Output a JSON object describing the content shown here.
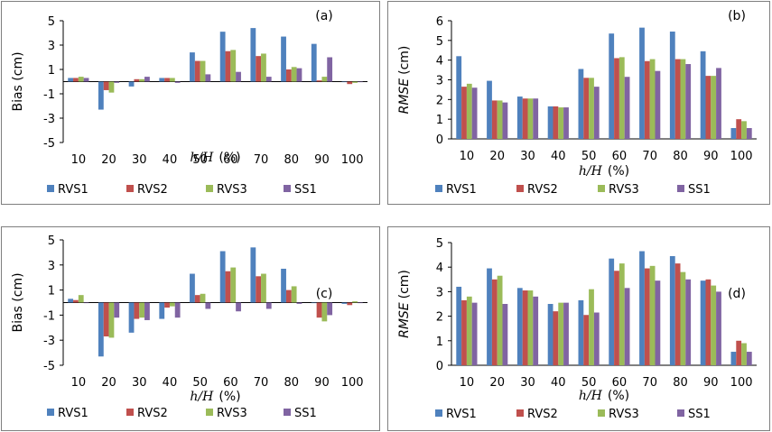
{
  "colors": {
    "RVS1": "#4f81bd",
    "RVS2": "#c0504d",
    "RVS3": "#9bbb59",
    "SS1": "#8064a2"
  },
  "chart_data": [
    {
      "type": "bar",
      "panel_label": "(a)",
      "title": "",
      "categories": [
        "10",
        "20",
        "30",
        "40",
        "50",
        "60",
        "70",
        "80",
        "90",
        "100"
      ],
      "xlabel_italic": "h/H",
      "xlabel_unit": "(%)",
      "ylabel": "Bias (cm)",
      "ylabel_italic": false,
      "ylim": [
        -5,
        5
      ],
      "yticks": [
        "5",
        "3",
        "1",
        "-1",
        "-3",
        "-5"
      ],
      "ytick_values": [
        5,
        3,
        1,
        -1,
        -3,
        -5
      ],
      "grid": false,
      "legend_position": "bottom",
      "series": [
        {
          "name": "RVS1",
          "values": [
            0.3,
            -2.3,
            -0.4,
            0.3,
            2.4,
            4.1,
            4.4,
            3.7,
            3.1,
            0.0
          ]
        },
        {
          "name": "RVS2",
          "values": [
            0.3,
            -0.7,
            0.2,
            0.3,
            1.7,
            2.5,
            2.1,
            1.0,
            0.1,
            -0.2
          ]
        },
        {
          "name": "RVS3",
          "values": [
            0.4,
            -0.9,
            0.2,
            0.3,
            1.7,
            2.6,
            2.3,
            1.2,
            0.4,
            -0.1
          ]
        },
        {
          "name": "SS1",
          "values": [
            0.3,
            -0.1,
            0.4,
            -0.1,
            0.6,
            0.8,
            0.4,
            1.1,
            2.0,
            0.0
          ]
        }
      ]
    },
    {
      "type": "bar",
      "panel_label": "(b)",
      "title": "",
      "categories": [
        "10",
        "20",
        "30",
        "40",
        "50",
        "60",
        "70",
        "80",
        "90",
        "100"
      ],
      "xlabel_italic": "h/H",
      "xlabel_unit": "(%)",
      "ylabel": "RMSE (cm)",
      "ylabel_italic": true,
      "ylim": [
        0,
        6
      ],
      "yticks": [
        "6",
        "5",
        "4",
        "3",
        "2",
        "1",
        "0"
      ],
      "ytick_values": [
        6,
        5,
        4,
        3,
        2,
        1,
        0
      ],
      "grid": false,
      "legend_position": "bottom",
      "series": [
        {
          "name": "RVS1",
          "values": [
            4.2,
            2.95,
            2.15,
            1.65,
            3.55,
            5.35,
            5.65,
            5.45,
            4.45,
            0.55
          ]
        },
        {
          "name": "RVS2",
          "values": [
            2.65,
            1.95,
            2.05,
            1.65,
            3.1,
            4.1,
            3.95,
            4.05,
            3.2,
            1.0
          ]
        },
        {
          "name": "RVS3",
          "values": [
            2.8,
            1.95,
            2.05,
            1.6,
            3.1,
            4.15,
            4.05,
            4.05,
            3.2,
            0.9
          ]
        },
        {
          "name": "SS1",
          "values": [
            2.6,
            1.85,
            2.05,
            1.6,
            2.65,
            3.15,
            3.45,
            3.8,
            3.6,
            0.55
          ]
        }
      ]
    },
    {
      "type": "bar",
      "panel_label": "(c)",
      "title": "",
      "categories": [
        "10",
        "20",
        "30",
        "40",
        "50",
        "60",
        "70",
        "80",
        "90",
        "100"
      ],
      "xlabel_italic": "h/H",
      "xlabel_unit": "(%)",
      "ylabel": "Bias (cm)",
      "ylabel_italic": false,
      "ylim": [
        -5,
        5
      ],
      "yticks": [
        "5",
        "3",
        "1",
        "-1",
        "-3",
        "-5"
      ],
      "ytick_values": [
        5,
        3,
        1,
        -1,
        -3,
        -5
      ],
      "grid": false,
      "legend_position": "bottom",
      "series": [
        {
          "name": "RVS1",
          "values": [
            0.3,
            -4.3,
            -2.4,
            -1.3,
            2.3,
            4.1,
            4.4,
            2.7,
            0.0,
            -0.1
          ]
        },
        {
          "name": "RVS2",
          "values": [
            0.2,
            -2.7,
            -1.3,
            -0.4,
            0.6,
            2.5,
            2.1,
            1.0,
            -1.2,
            -0.2
          ]
        },
        {
          "name": "RVS3",
          "values": [
            0.6,
            -2.8,
            -1.2,
            -0.3,
            0.7,
            2.8,
            2.3,
            1.3,
            -1.5,
            0.1
          ]
        },
        {
          "name": "SS1",
          "values": [
            0.0,
            -1.2,
            -1.4,
            -1.2,
            -0.5,
            -0.7,
            -0.5,
            -0.1,
            -1.0,
            0.0
          ]
        }
      ]
    },
    {
      "type": "bar",
      "panel_label": "(d)",
      "title": "",
      "categories": [
        "10",
        "20",
        "30",
        "40",
        "50",
        "60",
        "70",
        "80",
        "90",
        "100"
      ],
      "xlabel_italic": "h/H",
      "xlabel_unit": "(%)",
      "ylabel": "RMSE (cm)",
      "ylabel_italic": true,
      "ylim": [
        0,
        5
      ],
      "yticks": [
        "5",
        "4",
        "3",
        "2",
        "1",
        "0"
      ],
      "ytick_values": [
        5,
        4,
        3,
        2,
        1,
        0
      ],
      "grid": false,
      "legend_position": "bottom",
      "series": [
        {
          "name": "RVS1",
          "values": [
            3.2,
            3.95,
            3.15,
            2.5,
            2.65,
            4.35,
            4.65,
            4.45,
            3.45,
            0.55
          ]
        },
        {
          "name": "RVS2",
          "values": [
            2.65,
            3.5,
            3.05,
            2.2,
            2.05,
            3.85,
            3.95,
            4.15,
            3.5,
            1.0
          ]
        },
        {
          "name": "RVS3",
          "values": [
            2.8,
            3.65,
            3.05,
            2.55,
            3.1,
            4.15,
            4.05,
            3.8,
            3.25,
            0.9
          ]
        },
        {
          "name": "SS1",
          "values": [
            2.55,
            2.5,
            2.8,
            2.55,
            2.15,
            3.15,
            3.45,
            3.5,
            3.0,
            0.55
          ]
        }
      ]
    }
  ]
}
